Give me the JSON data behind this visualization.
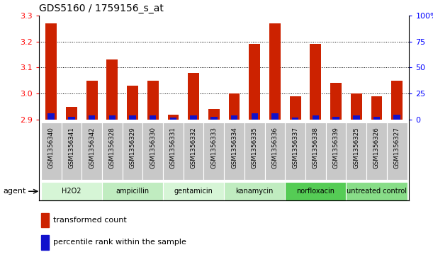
{
  "title": "GDS5160 / 1759156_s_at",
  "samples": [
    "GSM1356340",
    "GSM1356341",
    "GSM1356342",
    "GSM1356328",
    "GSM1356329",
    "GSM1356330",
    "GSM1356331",
    "GSM1356332",
    "GSM1356333",
    "GSM1356334",
    "GSM1356335",
    "GSM1356336",
    "GSM1356337",
    "GSM1356338",
    "GSM1356339",
    "GSM1356325",
    "GSM1356326",
    "GSM1356327"
  ],
  "red_values": [
    3.27,
    2.95,
    3.05,
    3.13,
    3.03,
    3.05,
    2.92,
    3.08,
    2.94,
    3.0,
    3.19,
    3.27,
    2.99,
    3.19,
    3.04,
    3.0,
    2.99,
    3.05
  ],
  "blue_percentiles": [
    6,
    3,
    4,
    4,
    4,
    4,
    2,
    4,
    3,
    4,
    6,
    6,
    2,
    4,
    3,
    4,
    3,
    5
  ],
  "ymin": 2.9,
  "ymax": 3.3,
  "y2min": 0,
  "y2max": 100,
  "y_ticks": [
    2.9,
    3.0,
    3.1,
    3.2,
    3.3
  ],
  "y2_ticks": [
    0,
    25,
    50,
    75,
    100
  ],
  "groups": [
    {
      "label": "H2O2",
      "start": 0,
      "end": 3,
      "color": "#d6f5d6"
    },
    {
      "label": "ampicillin",
      "start": 3,
      "end": 6,
      "color": "#c0ecc0"
    },
    {
      "label": "gentamicin",
      "start": 6,
      "end": 9,
      "color": "#d6f5d6"
    },
    {
      "label": "kanamycin",
      "start": 9,
      "end": 12,
      "color": "#c0ecc0"
    },
    {
      "label": "norfloxacin",
      "start": 12,
      "end": 15,
      "color": "#55cc55"
    },
    {
      "label": "untreated control",
      "start": 15,
      "end": 18,
      "color": "#88dd88"
    }
  ],
  "bar_color_red": "#cc2200",
  "bar_color_blue": "#1111cc",
  "tick_bg_color": "#c8c8c8",
  "bar_width": 0.55
}
